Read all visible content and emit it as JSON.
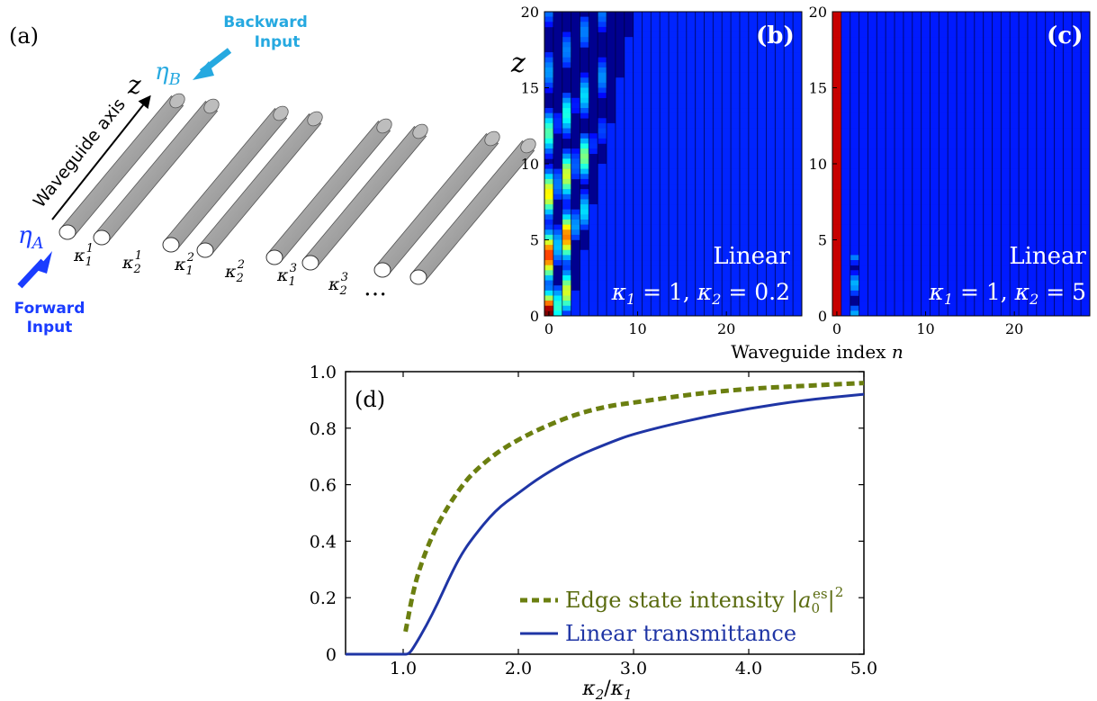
{
  "panel_a": {
    "label": "(a)",
    "backward_input": [
      "Backward",
      "Input"
    ],
    "forward_input": [
      "Forward",
      "Input"
    ],
    "eta_a": "ηA",
    "eta_b": "ηB",
    "axis_label": "Waveguide axis",
    "z_label": "z",
    "couplings": [
      "κ11",
      "κ12",
      "κ21",
      "κ22",
      "κ31",
      "κ32"
    ],
    "ellipsis": "…",
    "colors": {
      "forward": "#1a3cff",
      "backward": "#26a9e0",
      "rod": "#9a9a9a"
    }
  },
  "panel_b": {
    "label": "(b)",
    "text_line1": "Linear",
    "text_line2": "κ1 = 1,  κ2 = 0.2",
    "y_axis_label": "z",
    "y_ticks": [
      "0",
      "5",
      "10",
      "15",
      "20"
    ],
    "x_ticks": [
      "0",
      "10",
      "20"
    ]
  },
  "panel_c": {
    "label": "(c)",
    "text_line1": "Linear",
    "text_line2": "κ1 = 1,  κ2 = 5",
    "y_ticks": [
      "0",
      "5",
      "10",
      "15",
      "20"
    ],
    "x_ticks": [
      "0",
      "10",
      "20"
    ]
  },
  "shared_xlabel": "Waveguide index n",
  "chart_data": {
    "type": "line",
    "label": "(d)",
    "xlabel": "κ2/κ1",
    "ylabel": "",
    "xlim": [
      0.5,
      5.0
    ],
    "ylim": [
      0,
      1.0
    ],
    "x_tick_labels": [
      "1.0",
      "2.0",
      "3.0",
      "4.0",
      "5.0"
    ],
    "y_tick_labels": [
      "0",
      "0.2",
      "0.4",
      "0.6",
      "0.8",
      "1.0"
    ],
    "legend_position": "bottom-right",
    "series": [
      {
        "name": "Edge state intensity |a0es|2",
        "style": "dashed",
        "color": "#6b7f10",
        "x": [
          1.02,
          1.1,
          1.2,
          1.3,
          1.4,
          1.5,
          1.6,
          1.8,
          2.0,
          2.2,
          2.5,
          2.8,
          3.0,
          3.5,
          4.0,
          4.5,
          5.0
        ],
        "y": [
          0.08,
          0.25,
          0.37,
          0.46,
          0.53,
          0.59,
          0.64,
          0.71,
          0.76,
          0.8,
          0.85,
          0.88,
          0.89,
          0.92,
          0.94,
          0.95,
          0.96
        ]
      },
      {
        "name": "Linear transmittance",
        "style": "solid",
        "color": "#1f35a5",
        "x": [
          0.5,
          0.9,
          1.0,
          1.05,
          1.1,
          1.2,
          1.3,
          1.4,
          1.5,
          1.6,
          1.8,
          2.0,
          2.2,
          2.5,
          2.8,
          3.0,
          3.5,
          4.0,
          4.5,
          5.0
        ],
        "y": [
          0.0,
          0.0,
          0.0,
          0.0,
          0.03,
          0.1,
          0.18,
          0.27,
          0.35,
          0.41,
          0.51,
          0.57,
          0.63,
          0.7,
          0.75,
          0.78,
          0.83,
          0.87,
          0.9,
          0.92
        ]
      }
    ]
  }
}
